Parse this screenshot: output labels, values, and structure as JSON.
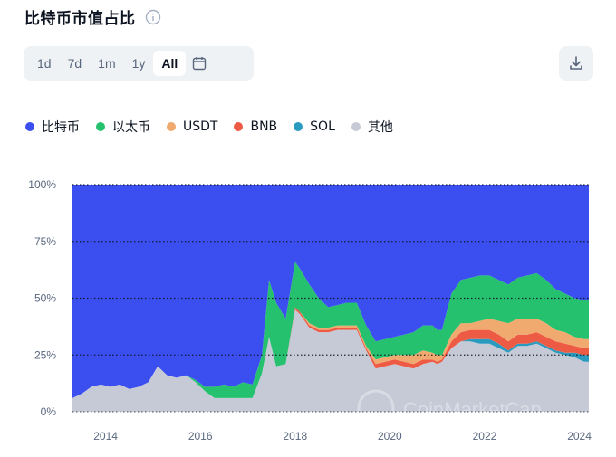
{
  "header": {
    "title": "比特币市值占比",
    "info_icon": "info-icon"
  },
  "range": {
    "buttons": [
      {
        "label": "1d"
      },
      {
        "label": "7d"
      },
      {
        "label": "1m"
      },
      {
        "label": "1y"
      },
      {
        "label": "All"
      }
    ],
    "active": "All",
    "calendar_icon": "calendar-icon"
  },
  "toolbar": {
    "download_icon": "download-icon"
  },
  "watermark": {
    "text": "CoinMarketCap"
  },
  "colors": {
    "btc": "#3b4ff0",
    "eth": "#25c16f",
    "usdt": "#f0a96e",
    "bnb": "#ee5b45",
    "sol": "#2a9bbf",
    "other": "#c5cad6"
  },
  "chart_data": {
    "type": "area",
    "stacked": true,
    "percent": true,
    "xlim": [
      2013.3,
      2024.2
    ],
    "ylim": [
      0,
      100
    ],
    "y_ticks": [
      "0%",
      "25%",
      "50%",
      "75%",
      "100%"
    ],
    "x_ticks": [
      "2014",
      "2016",
      "2018",
      "2020",
      "2022",
      "2024"
    ],
    "grid": "horizontal-dotted",
    "legend_position": "top-left",
    "x": [
      2013.3,
      2013.5,
      2013.7,
      2013.9,
      2014.1,
      2014.3,
      2014.5,
      2014.7,
      2014.9,
      2015.1,
      2015.3,
      2015.5,
      2015.7,
      2015.9,
      2016.1,
      2016.3,
      2016.5,
      2016.7,
      2016.9,
      2017.1,
      2017.3,
      2017.45,
      2017.6,
      2017.8,
      2018.0,
      2018.1,
      2018.3,
      2018.5,
      2018.7,
      2018.9,
      2019.1,
      2019.3,
      2019.5,
      2019.7,
      2019.9,
      2020.1,
      2020.3,
      2020.5,
      2020.7,
      2020.9,
      2021.0,
      2021.1,
      2021.3,
      2021.5,
      2021.7,
      2021.9,
      2022.1,
      2022.3,
      2022.5,
      2022.7,
      2022.9,
      2023.1,
      2023.3,
      2023.5,
      2023.7,
      2023.9,
      2024.1,
      2024.2
    ],
    "series": [
      {
        "name": "比特币",
        "key": "btc",
        "values": [
          94,
          92,
          89,
          88,
          89,
          88,
          90,
          89,
          87,
          80,
          84,
          85,
          84,
          86,
          89,
          89,
          88,
          89,
          87,
          88,
          75,
          42,
          52,
          59,
          34,
          37,
          44,
          50,
          54,
          53,
          52,
          52,
          62,
          69,
          68,
          67,
          66,
          65,
          62,
          62,
          64,
          64,
          48,
          42,
          41,
          40,
          40,
          42,
          44,
          41,
          40,
          39,
          42,
          46,
          48,
          50,
          51,
          51
        ]
      },
      {
        "name": "以太币",
        "key": "eth",
        "values": [
          0,
          0,
          0,
          0,
          0,
          0,
          0,
          0,
          0,
          0,
          0,
          0,
          0,
          1,
          2,
          5,
          6,
          5,
          7,
          6,
          8,
          25,
          28,
          20,
          20,
          19,
          17,
          13,
          9,
          9,
          10,
          10,
          9,
          8,
          8,
          8,
          9,
          10,
          11,
          12,
          11,
          11,
          18,
          19,
          20,
          20,
          19,
          18,
          17,
          18,
          19,
          20,
          19,
          18,
          17,
          17,
          17,
          17
        ]
      },
      {
        "name": "USDT",
        "key": "usdt",
        "values": [
          0,
          0,
          0,
          0,
          0,
          0,
          0,
          0,
          0,
          0,
          0,
          0,
          0,
          0,
          0,
          0,
          0,
          0,
          0,
          0,
          0,
          0,
          0,
          0,
          0,
          0,
          1,
          1,
          1,
          1,
          1,
          1,
          1,
          2,
          2,
          2,
          3,
          4,
          4,
          3,
          3,
          2,
          3,
          4,
          3,
          4,
          5,
          6,
          8,
          7,
          7,
          6,
          6,
          5,
          5,
          4,
          4,
          4
        ]
      },
      {
        "name": "BNB",
        "key": "bnb",
        "values": [
          0,
          0,
          0,
          0,
          0,
          0,
          0,
          0,
          0,
          0,
          0,
          0,
          0,
          0,
          0,
          0,
          0,
          0,
          0,
          0,
          0,
          0,
          0,
          0,
          1,
          1,
          1,
          1,
          1,
          1,
          1,
          1,
          1,
          2,
          2,
          2,
          2,
          2,
          2,
          1,
          1,
          1,
          3,
          4,
          4,
          4,
          4,
          4,
          4,
          4,
          4,
          4,
          4,
          4,
          4,
          3,
          3,
          3
        ]
      },
      {
        "name": "SOL",
        "key": "sol",
        "values": [
          0,
          0,
          0,
          0,
          0,
          0,
          0,
          0,
          0,
          0,
          0,
          0,
          0,
          0,
          0,
          0,
          0,
          0,
          0,
          0,
          0,
          0,
          0,
          0,
          0,
          0,
          0,
          0,
          0,
          0,
          0,
          0,
          0,
          0,
          0,
          0,
          0,
          0,
          0,
          0,
          0,
          0,
          0,
          0,
          1,
          2,
          2,
          2,
          1,
          1,
          1,
          1,
          1,
          1,
          1,
          2,
          3,
          3
        ]
      },
      {
        "name": "其他",
        "key": "other",
        "values": [
          6,
          8,
          11,
          12,
          11,
          12,
          10,
          11,
          13,
          20,
          16,
          15,
          16,
          13,
          9,
          6,
          6,
          6,
          6,
          6,
          17,
          33,
          20,
          21,
          45,
          43,
          37,
          35,
          35,
          36,
          36,
          36,
          27,
          19,
          20,
          21,
          20,
          19,
          21,
          22,
          21,
          22,
          28,
          31,
          31,
          30,
          30,
          28,
          26,
          29,
          29,
          30,
          28,
          26,
          25,
          24,
          22,
          22
        ]
      }
    ]
  }
}
